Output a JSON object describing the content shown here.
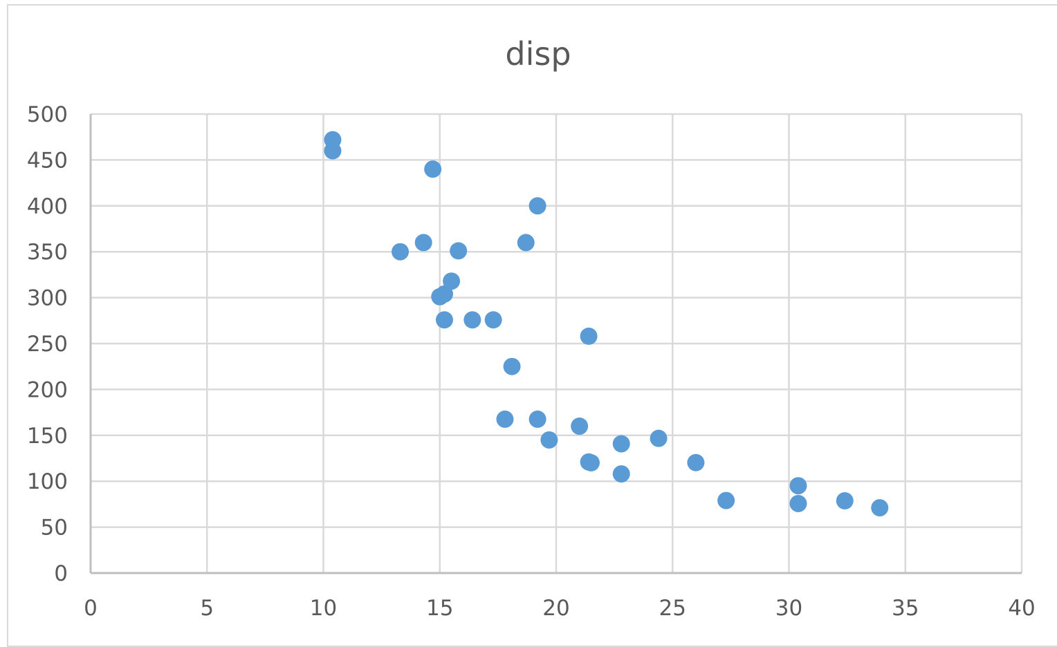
{
  "chart_data": {
    "type": "scatter",
    "title": "disp",
    "xlabel": "",
    "ylabel": "",
    "xlim": [
      0,
      40
    ],
    "ylim": [
      0,
      500
    ],
    "x_ticks": [
      0,
      5,
      10,
      15,
      20,
      25,
      30,
      35,
      40
    ],
    "y_ticks": [
      0,
      50,
      100,
      150,
      200,
      250,
      300,
      350,
      400,
      450,
      500
    ],
    "grid": true,
    "marker_color": "#5b9bd5",
    "series": [
      {
        "points": [
          [
            10.4,
            472
          ],
          [
            10.4,
            460
          ],
          [
            14.7,
            440
          ],
          [
            19.2,
            400
          ],
          [
            13.3,
            350
          ],
          [
            14.3,
            360
          ],
          [
            15.8,
            351
          ],
          [
            18.7,
            360
          ],
          [
            15.5,
            318
          ],
          [
            15.2,
            304
          ],
          [
            15.0,
            301
          ],
          [
            15.2,
            275.8
          ],
          [
            16.4,
            275.8
          ],
          [
            17.3,
            275.8
          ],
          [
            21.4,
            258
          ],
          [
            18.1,
            225
          ],
          [
            17.8,
            167.6
          ],
          [
            19.2,
            167.6
          ],
          [
            21.0,
            160
          ],
          [
            19.7,
            145
          ],
          [
            22.8,
            140.8
          ],
          [
            24.4,
            146.7
          ],
          [
            21.4,
            121
          ],
          [
            21.5,
            120.1
          ],
          [
            22.8,
            108
          ],
          [
            26.0,
            120.3
          ],
          [
            27.3,
            79
          ],
          [
            30.4,
            95.1
          ],
          [
            30.4,
            75.7
          ],
          [
            32.4,
            78.7
          ],
          [
            33.9,
            71.1
          ]
        ]
      }
    ]
  }
}
